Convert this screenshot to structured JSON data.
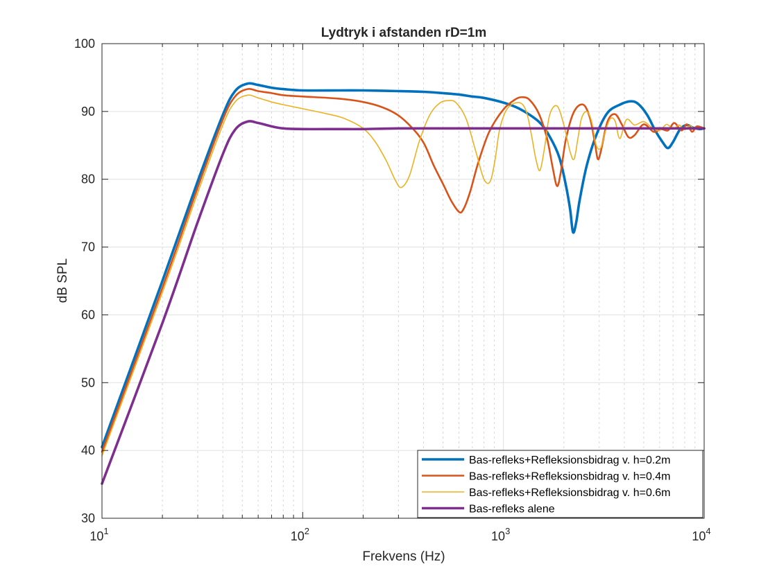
{
  "chart_data": {
    "type": "line",
    "title": "Lydtryk i afstanden rD=1m",
    "xlabel": "Frekvens (Hz)",
    "ylabel": "dB SPL",
    "xscale": "log",
    "xlim": [
      10,
      10000
    ],
    "ylim": [
      30,
      100
    ],
    "grid": true,
    "minor_grid": true,
    "legend_position": "bottom-right",
    "yticks": [
      "30",
      "40",
      "50",
      "60",
      "70",
      "80",
      "90",
      "100"
    ],
    "xticks": [
      {
        "base": "10",
        "exp": "1"
      },
      {
        "base": "10",
        "exp": "2"
      },
      {
        "base": "10",
        "exp": "3"
      },
      {
        "base": "10",
        "exp": "4"
      }
    ],
    "series": [
      {
        "name": "Bas-refleks+Refleksionsbidrag v. h=0.2m",
        "color": "#0072BD",
        "line_weight": "thick",
        "x": [
          10,
          20,
          30,
          40,
          46,
          53,
          60,
          70,
          80,
          100,
          150,
          200,
          300,
          400,
          500,
          600,
          700,
          800,
          1000,
          1200,
          1500,
          1700,
          1900,
          2050,
          2150,
          2220,
          2300,
          2400,
          2600,
          2900,
          3300,
          3800,
          4300,
          4700,
          5200,
          5700,
          6200,
          6600,
          7000,
          7600,
          8200,
          8800,
          9500,
          10000
        ],
        "y": [
          40.5,
          65.0,
          79.7,
          89.5,
          93.0,
          94.1,
          93.9,
          93.5,
          93.3,
          93.1,
          93.1,
          93.1,
          93.0,
          92.9,
          92.7,
          92.5,
          92.2,
          92.0,
          91.3,
          90.4,
          88.5,
          86.3,
          83.2,
          79.0,
          75.5,
          72.2,
          73.5,
          77.0,
          82.0,
          86.5,
          89.8,
          91.0,
          91.5,
          91.1,
          89.5,
          87.2,
          85.5,
          84.6,
          85.5,
          87.4,
          88.0,
          87.6,
          87.4,
          87.5
        ]
      },
      {
        "name": "Bas-refleks+Refleksionsbidrag v. h=0.4m",
        "color": "#D95319",
        "line_weight": "medium",
        "x": [
          10,
          20,
          30,
          40,
          46,
          53,
          60,
          70,
          80,
          100,
          150,
          200,
          250,
          300,
          350,
          400,
          450,
          500,
          550,
          600,
          630,
          680,
          750,
          850,
          1000,
          1150,
          1250,
          1350,
          1500,
          1650,
          1760,
          1850,
          1930,
          2050,
          2250,
          2500,
          2700,
          2850,
          2950,
          3050,
          3300,
          3600,
          3900,
          4200,
          4500,
          5000,
          5600,
          6100,
          6600,
          7100,
          7700,
          8200,
          8700,
          9200,
          10000
        ],
        "y": [
          39.8,
          64.0,
          78.8,
          88.8,
          92.2,
          93.3,
          93.0,
          92.7,
          92.4,
          92.2,
          91.9,
          91.4,
          90.6,
          89.4,
          87.6,
          85.4,
          82.0,
          79.3,
          76.8,
          75.2,
          75.5,
          78.0,
          82.5,
          87.0,
          90.3,
          91.8,
          92.1,
          91.7,
          89.7,
          86.0,
          81.7,
          79.0,
          81.0,
          86.0,
          90.0,
          91.0,
          89.0,
          85.5,
          83.0,
          84.0,
          88.5,
          89.6,
          88.0,
          86.2,
          86.5,
          88.1,
          87.0,
          87.4,
          87.2,
          88.3,
          87.2,
          88.1,
          87.0,
          87.8,
          87.5
        ]
      },
      {
        "name": "Bas-refleks+Refleksionsbidrag v. h=0.6m",
        "color": "#EDB120",
        "line_weight": "thin",
        "x": [
          10,
          20,
          30,
          40,
          46,
          53,
          60,
          70,
          80,
          100,
          130,
          160,
          200,
          230,
          260,
          290,
          310,
          340,
          380,
          430,
          480,
          530,
          580,
          650,
          730,
          800,
          860,
          910,
          960,
          1050,
          1200,
          1300,
          1380,
          1450,
          1520,
          1600,
          1700,
          1850,
          2000,
          2150,
          2250,
          2350,
          2450,
          2600,
          2750,
          2900,
          3050,
          3200,
          3400,
          3600,
          3800,
          4100,
          4500,
          5000,
          5500,
          6000,
          6500,
          7000,
          7500,
          8000,
          8500,
          9000,
          10000
        ],
        "y": [
          39.2,
          63.3,
          78.0,
          88.0,
          91.4,
          92.4,
          92.0,
          91.4,
          91.0,
          90.4,
          89.7,
          89.0,
          87.5,
          85.5,
          82.8,
          79.8,
          78.8,
          80.5,
          85.5,
          89.5,
          91.2,
          91.6,
          91.3,
          89.0,
          84.0,
          80.0,
          79.7,
          83.0,
          87.5,
          90.5,
          91.3,
          90.0,
          86.5,
          83.0,
          81.3,
          84.5,
          89.5,
          90.8,
          88.0,
          84.0,
          83.0,
          86.0,
          89.0,
          90.0,
          88.5,
          85.0,
          84.6,
          86.8,
          88.9,
          88.6,
          86.0,
          88.8,
          88.0,
          88.5,
          87.6,
          87.2,
          88.1,
          87.4,
          88.0,
          87.3,
          87.9,
          87.4,
          87.5
        ]
      },
      {
        "name": "Bas-refleks alene",
        "color": "#7E2F8E",
        "line_weight": "thick",
        "x": [
          10,
          20,
          30,
          40,
          46,
          53,
          60,
          70,
          80,
          100,
          150,
          200,
          300,
          500,
          1000,
          2000,
          5000,
          10000
        ],
        "y": [
          35.1,
          58.8,
          73.7,
          83.7,
          87.3,
          88.5,
          88.3,
          87.8,
          87.5,
          87.4,
          87.4,
          87.4,
          87.5,
          87.5,
          87.5,
          87.5,
          87.5,
          87.5
        ]
      }
    ]
  }
}
